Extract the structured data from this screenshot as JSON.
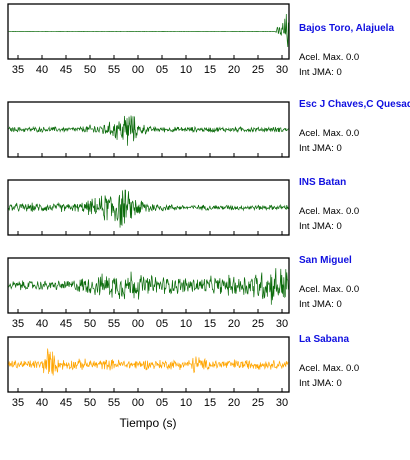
{
  "colors": {
    "green": "#0b6b0b",
    "orange": "#ffa500",
    "station_name": "#1010e0",
    "frame": "#000000"
  },
  "chart_data": {
    "type": "line",
    "xlabel": "Tiempo (s)",
    "x_tick_labels": [
      "35",
      "40",
      "45",
      "50",
      "55",
      "00",
      "05",
      "10",
      "15",
      "20",
      "25",
      "30"
    ],
    "stations": [
      {
        "name": "Bajos Toro, Alajuela",
        "acel_label": "Acel. Max. 0.0",
        "jma_label": "Int JMA: 0",
        "color": "#0b6b0b",
        "tick_labels_below": true,
        "envelope": [
          [
            0,
            0.006
          ],
          [
            95,
            0.006
          ],
          [
            97,
            0.35
          ],
          [
            100,
            1.0
          ]
        ]
      },
      {
        "name": "Esc J Chaves,C Quesada",
        "acel_label": "Acel. Max. 0.0",
        "jma_label": "Int JMA: 0",
        "color": "#0b6b0b",
        "tick_labels_below": false,
        "envelope": [
          [
            0,
            0.12
          ],
          [
            25,
            0.12
          ],
          [
            32,
            0.28
          ],
          [
            37,
            0.35
          ],
          [
            40,
            0.65
          ],
          [
            43,
            1.0
          ],
          [
            46,
            0.35
          ],
          [
            51,
            0.12
          ],
          [
            100,
            0.12
          ]
        ]
      },
      {
        "name": "INS Batan",
        "acel_label": "Acel. Max. 0.0",
        "jma_label": "Int JMA: 0",
        "color": "#0b6b0b",
        "tick_labels_below": false,
        "envelope": [
          [
            0,
            0.2
          ],
          [
            25,
            0.2
          ],
          [
            33,
            0.5
          ],
          [
            36,
            0.85
          ],
          [
            40,
            1.0
          ],
          [
            45,
            0.5
          ],
          [
            52,
            0.22
          ],
          [
            60,
            0.12
          ],
          [
            100,
            0.12
          ]
        ]
      },
      {
        "name": "San Miguel",
        "acel_label": "Acel. Max. 0.0",
        "jma_label": "Int JMA: 0",
        "color": "#0b6b0b",
        "tick_labels_below": true,
        "envelope": [
          [
            0,
            0.22
          ],
          [
            20,
            0.22
          ],
          [
            28,
            0.4
          ],
          [
            36,
            0.55
          ],
          [
            44,
            0.75
          ],
          [
            48,
            0.5
          ],
          [
            60,
            0.38
          ],
          [
            75,
            0.4
          ],
          [
            85,
            0.55
          ],
          [
            92,
            0.8
          ],
          [
            100,
            0.95
          ]
        ]
      },
      {
        "name": "La Sabana",
        "acel_label": "Acel. Max. 0.0",
        "jma_label": "Int JMA: 0",
        "color": "#ffa500",
        "tick_labels_below": true,
        "envelope": [
          [
            0,
            0.2
          ],
          [
            12,
            0.22
          ],
          [
            14,
            1.0
          ],
          [
            16,
            0.5
          ],
          [
            19,
            0.25
          ],
          [
            65,
            0.22
          ],
          [
            67,
            0.55
          ],
          [
            69,
            0.25
          ],
          [
            100,
            0.2
          ]
        ]
      }
    ]
  }
}
